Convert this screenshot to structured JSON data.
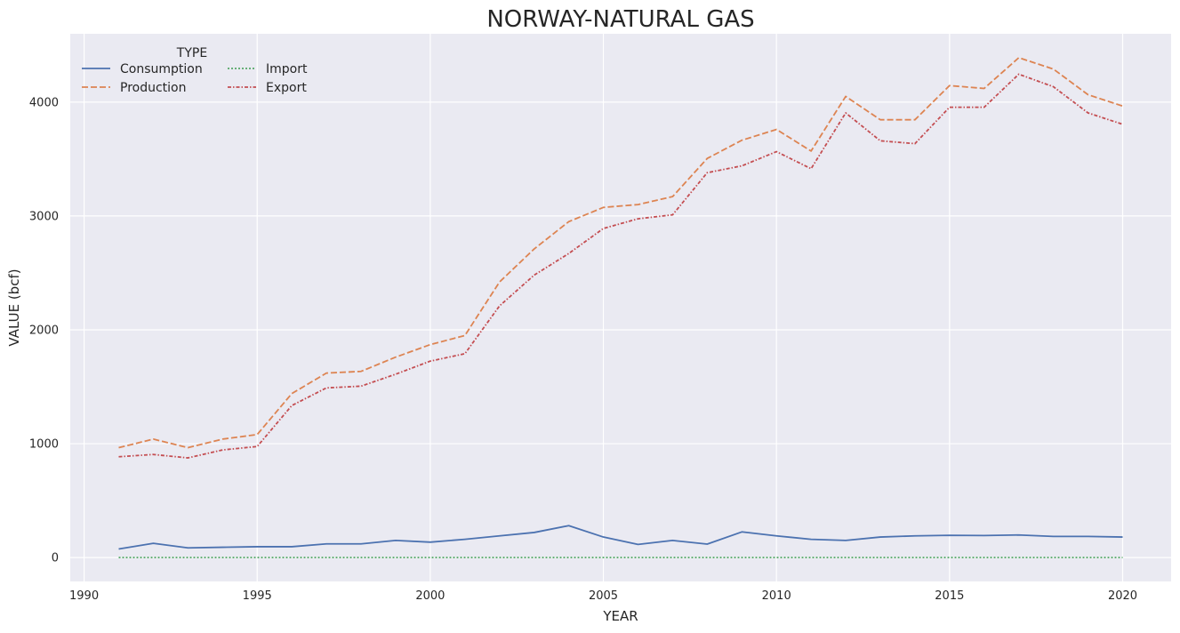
{
  "chart_data": {
    "type": "line",
    "title": "NORWAY-NATURAL GAS",
    "xlabel": "YEAR",
    "ylabel": "VALUE (bcf)",
    "x_ticks": [
      1990,
      1995,
      2000,
      2005,
      2010,
      2015,
      2020
    ],
    "y_ticks": [
      0,
      1000,
      2000,
      3000,
      4000
    ],
    "xlim": [
      1989.6,
      2021.4
    ],
    "ylim": [
      -210,
      4600
    ],
    "grid": true,
    "legend": {
      "title": "TYPE",
      "placement": "top-left",
      "columns": 2
    },
    "x": [
      1991,
      1992,
      1993,
      1994,
      1995,
      1996,
      1997,
      1998,
      1999,
      2000,
      2001,
      2002,
      2003,
      2004,
      2005,
      2006,
      2007,
      2008,
      2009,
      2010,
      2011,
      2012,
      2013,
      2014,
      2015,
      2016,
      2017,
      2018,
      2019,
      2020
    ],
    "series": [
      {
        "name": "Consumption",
        "color": "#4c72b0",
        "dash": "solid",
        "values": [
          75,
          125,
          85,
          90,
          95,
          95,
          120,
          120,
          150,
          135,
          160,
          190,
          220,
          280,
          180,
          115,
          150,
          118,
          225,
          190,
          160,
          150,
          180,
          190,
          195,
          193,
          198,
          185,
          185,
          180
        ]
      },
      {
        "name": "Production",
        "color": "#dd8452",
        "dash": "dashed",
        "values": [
          965,
          1040,
          965,
          1040,
          1080,
          1440,
          1620,
          1635,
          1760,
          1870,
          1950,
          2420,
          2710,
          2950,
          3075,
          3100,
          3170,
          3505,
          3665,
          3760,
          3570,
          4050,
          3845,
          3845,
          4145,
          4120,
          4390,
          4290,
          4065,
          3965
        ]
      },
      {
        "name": "Import",
        "color": "#55a868",
        "dash": "dotted",
        "values": [
          0,
          0,
          0,
          0,
          0,
          0,
          0,
          0,
          0,
          0,
          0,
          0,
          0,
          0,
          0,
          0,
          0,
          0,
          0,
          0,
          0,
          0,
          0,
          0,
          0,
          0,
          0,
          0,
          0,
          0
        ]
      },
      {
        "name": "Export",
        "color": "#c44e52",
        "dash": "dashdot",
        "values": [
          885,
          905,
          875,
          945,
          975,
          1335,
          1490,
          1505,
          1610,
          1725,
          1790,
          2210,
          2480,
          2670,
          2890,
          2975,
          3010,
          3380,
          3440,
          3565,
          3415,
          3905,
          3660,
          3635,
          3955,
          3955,
          4245,
          4135,
          3905,
          3805
        ]
      }
    ]
  }
}
